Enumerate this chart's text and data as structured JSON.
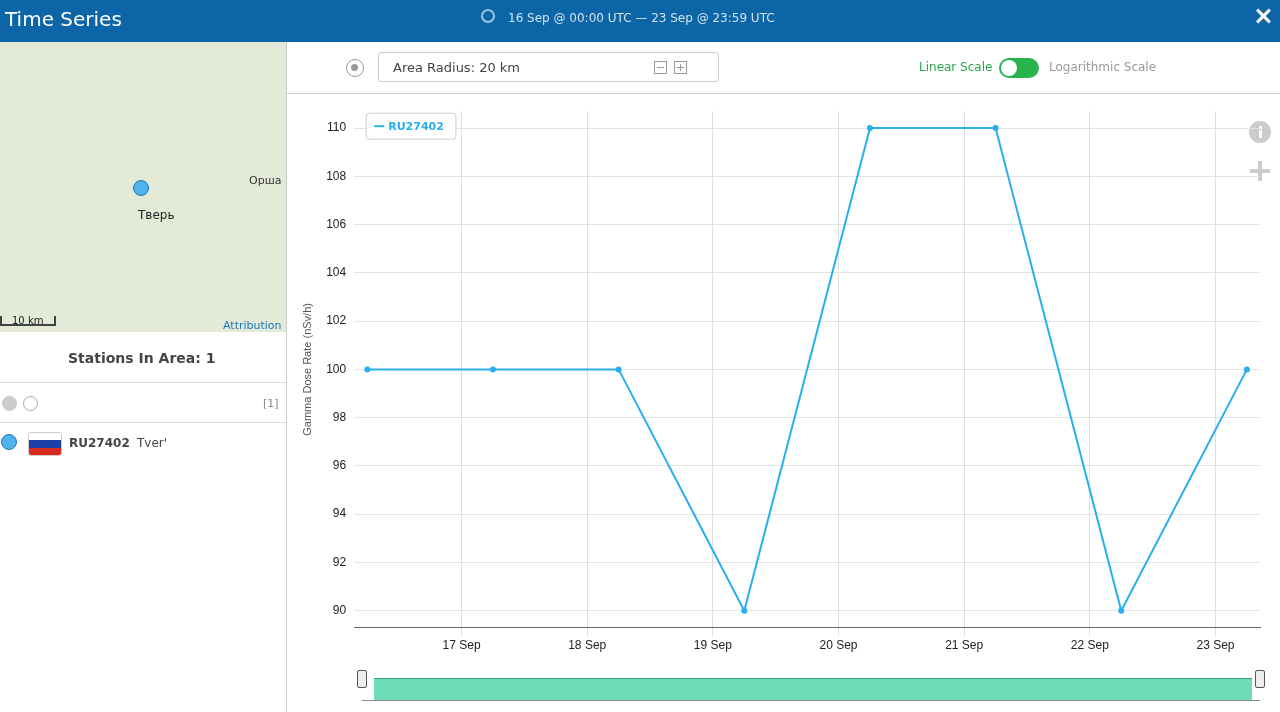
{
  "chart_data": {
    "type": "line",
    "title": "Time Series",
    "subtitle": "16 Sep @ 00:00 UTC  —  23 Sep @ 23:59 UTC",
    "ylabel": "Gamma Dose Rate (nSv/h)",
    "x": [
      "--09-16T06:00",
      "--09-17T06:00",
      "--09-18T06:00",
      "--09-19T06:00",
      "--09-20T06:00",
      "--09-21T06:00",
      "--09-22T06:00",
      "--09-23T06:00"
    ],
    "series": [
      {
        "name": "RU27402",
        "color": "#29aef0",
        "values": [
          100,
          100,
          100,
          90,
          110,
          110,
          90,
          100
        ]
      }
    ],
    "xlim": [
      "--09-16T03:30",
      "--09-23T08:30"
    ],
    "xticks": [
      {
        "value": "--09-17",
        "label": "17 Sep"
      },
      {
        "value": "--09-18",
        "label": "18 Sep"
      },
      {
        "value": "--09-19",
        "label": "19 Sep"
      },
      {
        "value": "--09-20",
        "label": "20 Sep"
      },
      {
        "value": "--09-21",
        "label": "21 Sep"
      },
      {
        "value": "--09-22",
        "label": "22 Sep"
      },
      {
        "value": "--09-23",
        "label": "23 Sep"
      }
    ],
    "ylim": [
      89.3,
      110.7
    ],
    "yticks": [
      90,
      92,
      94,
      96,
      98,
      100,
      102,
      104,
      106,
      108,
      110
    ],
    "grid": true,
    "legend": "top left",
    "marker": "circle",
    "line_style": "solid",
    "annotations": [
      "Area Radius: 20 km",
      "Linear Scale",
      "Logarithmic Scale",
      "Stations In Area: 1",
      "[1]",
      "RU27402",
      "Tver'",
      "Тверь",
      "Орша",
      "10 km",
      "Attribution"
    ]
  }
}
